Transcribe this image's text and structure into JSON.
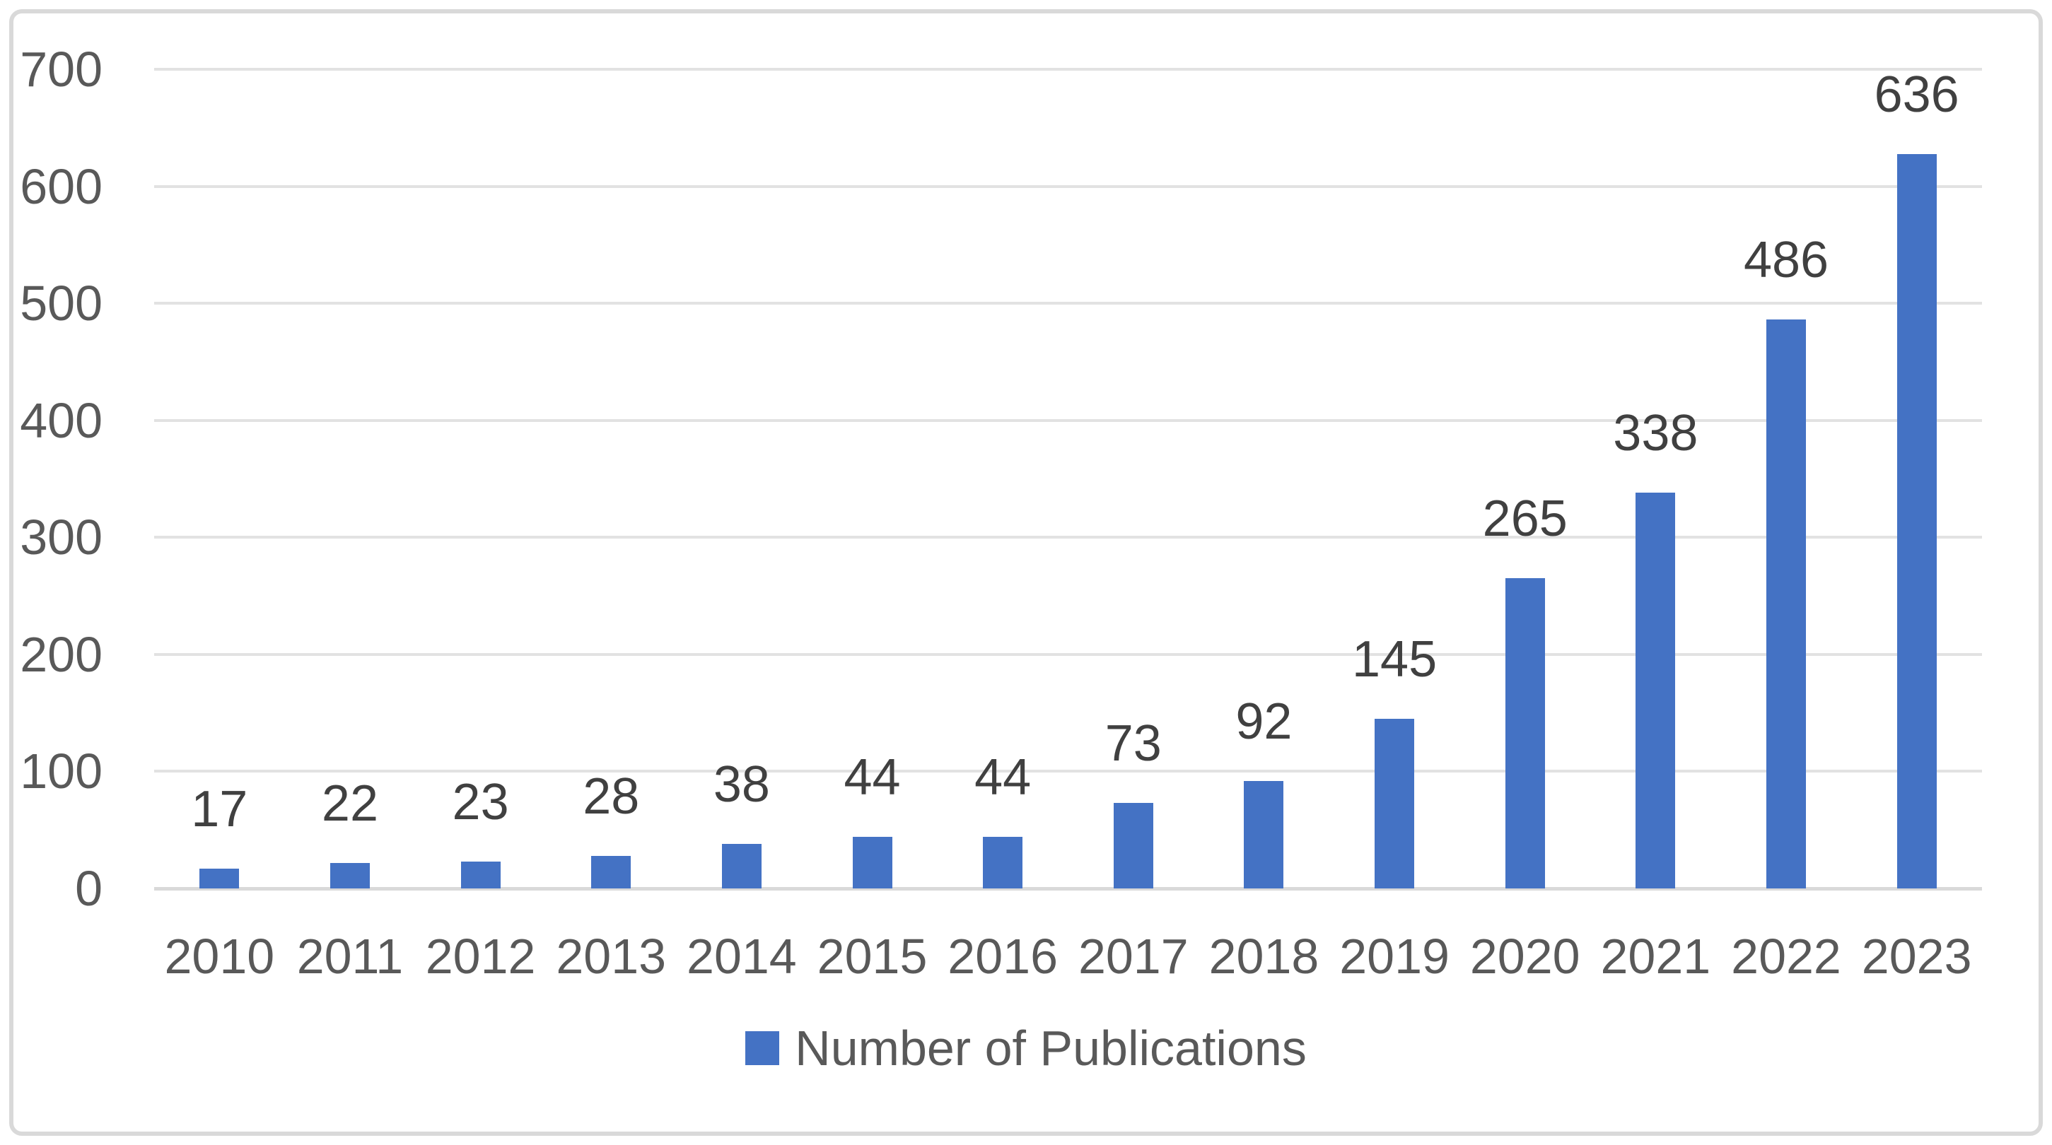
{
  "chart_data": {
    "type": "bar",
    "title": "",
    "categories": [
      "2010",
      "2011",
      "2012",
      "2013",
      "2014",
      "2015",
      "2016",
      "2017",
      "2018",
      "2019",
      "2020",
      "2021",
      "2022",
      "2023"
    ],
    "values": [
      17,
      22,
      23,
      28,
      38,
      44,
      44,
      73,
      92,
      145,
      265,
      338,
      486,
      636
    ],
    "series_name": "Number of Publications",
    "xlabel": "",
    "ylabel": "",
    "ylim": [
      0,
      700
    ],
    "y_ticks": [
      0,
      100,
      200,
      300,
      400,
      500,
      600,
      700
    ],
    "grid": true,
    "data_labels": true,
    "legend_position": "bottom"
  },
  "legend": {
    "label": "Number of Publications",
    "marker": "square"
  },
  "colors": {
    "bar": "#4472C4",
    "gridline": "#E2E2E2",
    "axis_line": "#D9D9D9",
    "data_label": "#404040",
    "tick_label": "#595959",
    "frame_border": "#D9D9D9",
    "background": "#FFFFFF"
  }
}
